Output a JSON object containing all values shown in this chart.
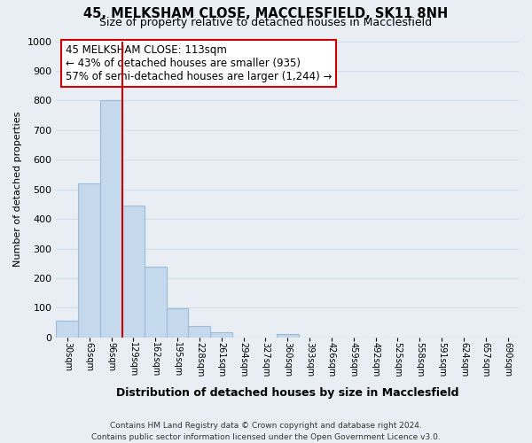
{
  "title": "45, MELKSHAM CLOSE, MACCLESFIELD, SK11 8NH",
  "subtitle": "Size of property relative to detached houses in Macclesfield",
  "xlabel": "Distribution of detached houses by size in Macclesfield",
  "ylabel": "Number of detached properties",
  "bar_labels": [
    "30sqm",
    "63sqm",
    "96sqm",
    "129sqm",
    "162sqm",
    "195sqm",
    "228sqm",
    "261sqm",
    "294sqm",
    "327sqm",
    "360sqm",
    "393sqm",
    "426sqm",
    "459sqm",
    "492sqm",
    "525sqm",
    "558sqm",
    "591sqm",
    "624sqm",
    "657sqm",
    "690sqm"
  ],
  "bar_values": [
    55,
    520,
    800,
    445,
    238,
    97,
    38,
    18,
    0,
    0,
    10,
    0,
    0,
    0,
    0,
    0,
    0,
    0,
    0,
    0,
    0
  ],
  "bar_color": "#c5d9ed",
  "bar_edge_color": "#9dbbd6",
  "marker_line_color": "#cc0000",
  "ylim": [
    0,
    1000
  ],
  "yticks": [
    0,
    100,
    200,
    300,
    400,
    500,
    600,
    700,
    800,
    900,
    1000
  ],
  "annotation_title": "45 MELKSHAM CLOSE: 113sqm",
  "annotation_line1": "← 43% of detached houses are smaller (935)",
  "annotation_line2": "57% of semi-detached houses are larger (1,244) →",
  "annotation_box_color": "#ffffff",
  "annotation_box_edge": "#cc0000",
  "footer_line1": "Contains HM Land Registry data © Crown copyright and database right 2024.",
  "footer_line2": "Contains public sector information licensed under the Open Government Licence v3.0.",
  "grid_color": "#d0dce8",
  "background_color": "#e8eef4"
}
